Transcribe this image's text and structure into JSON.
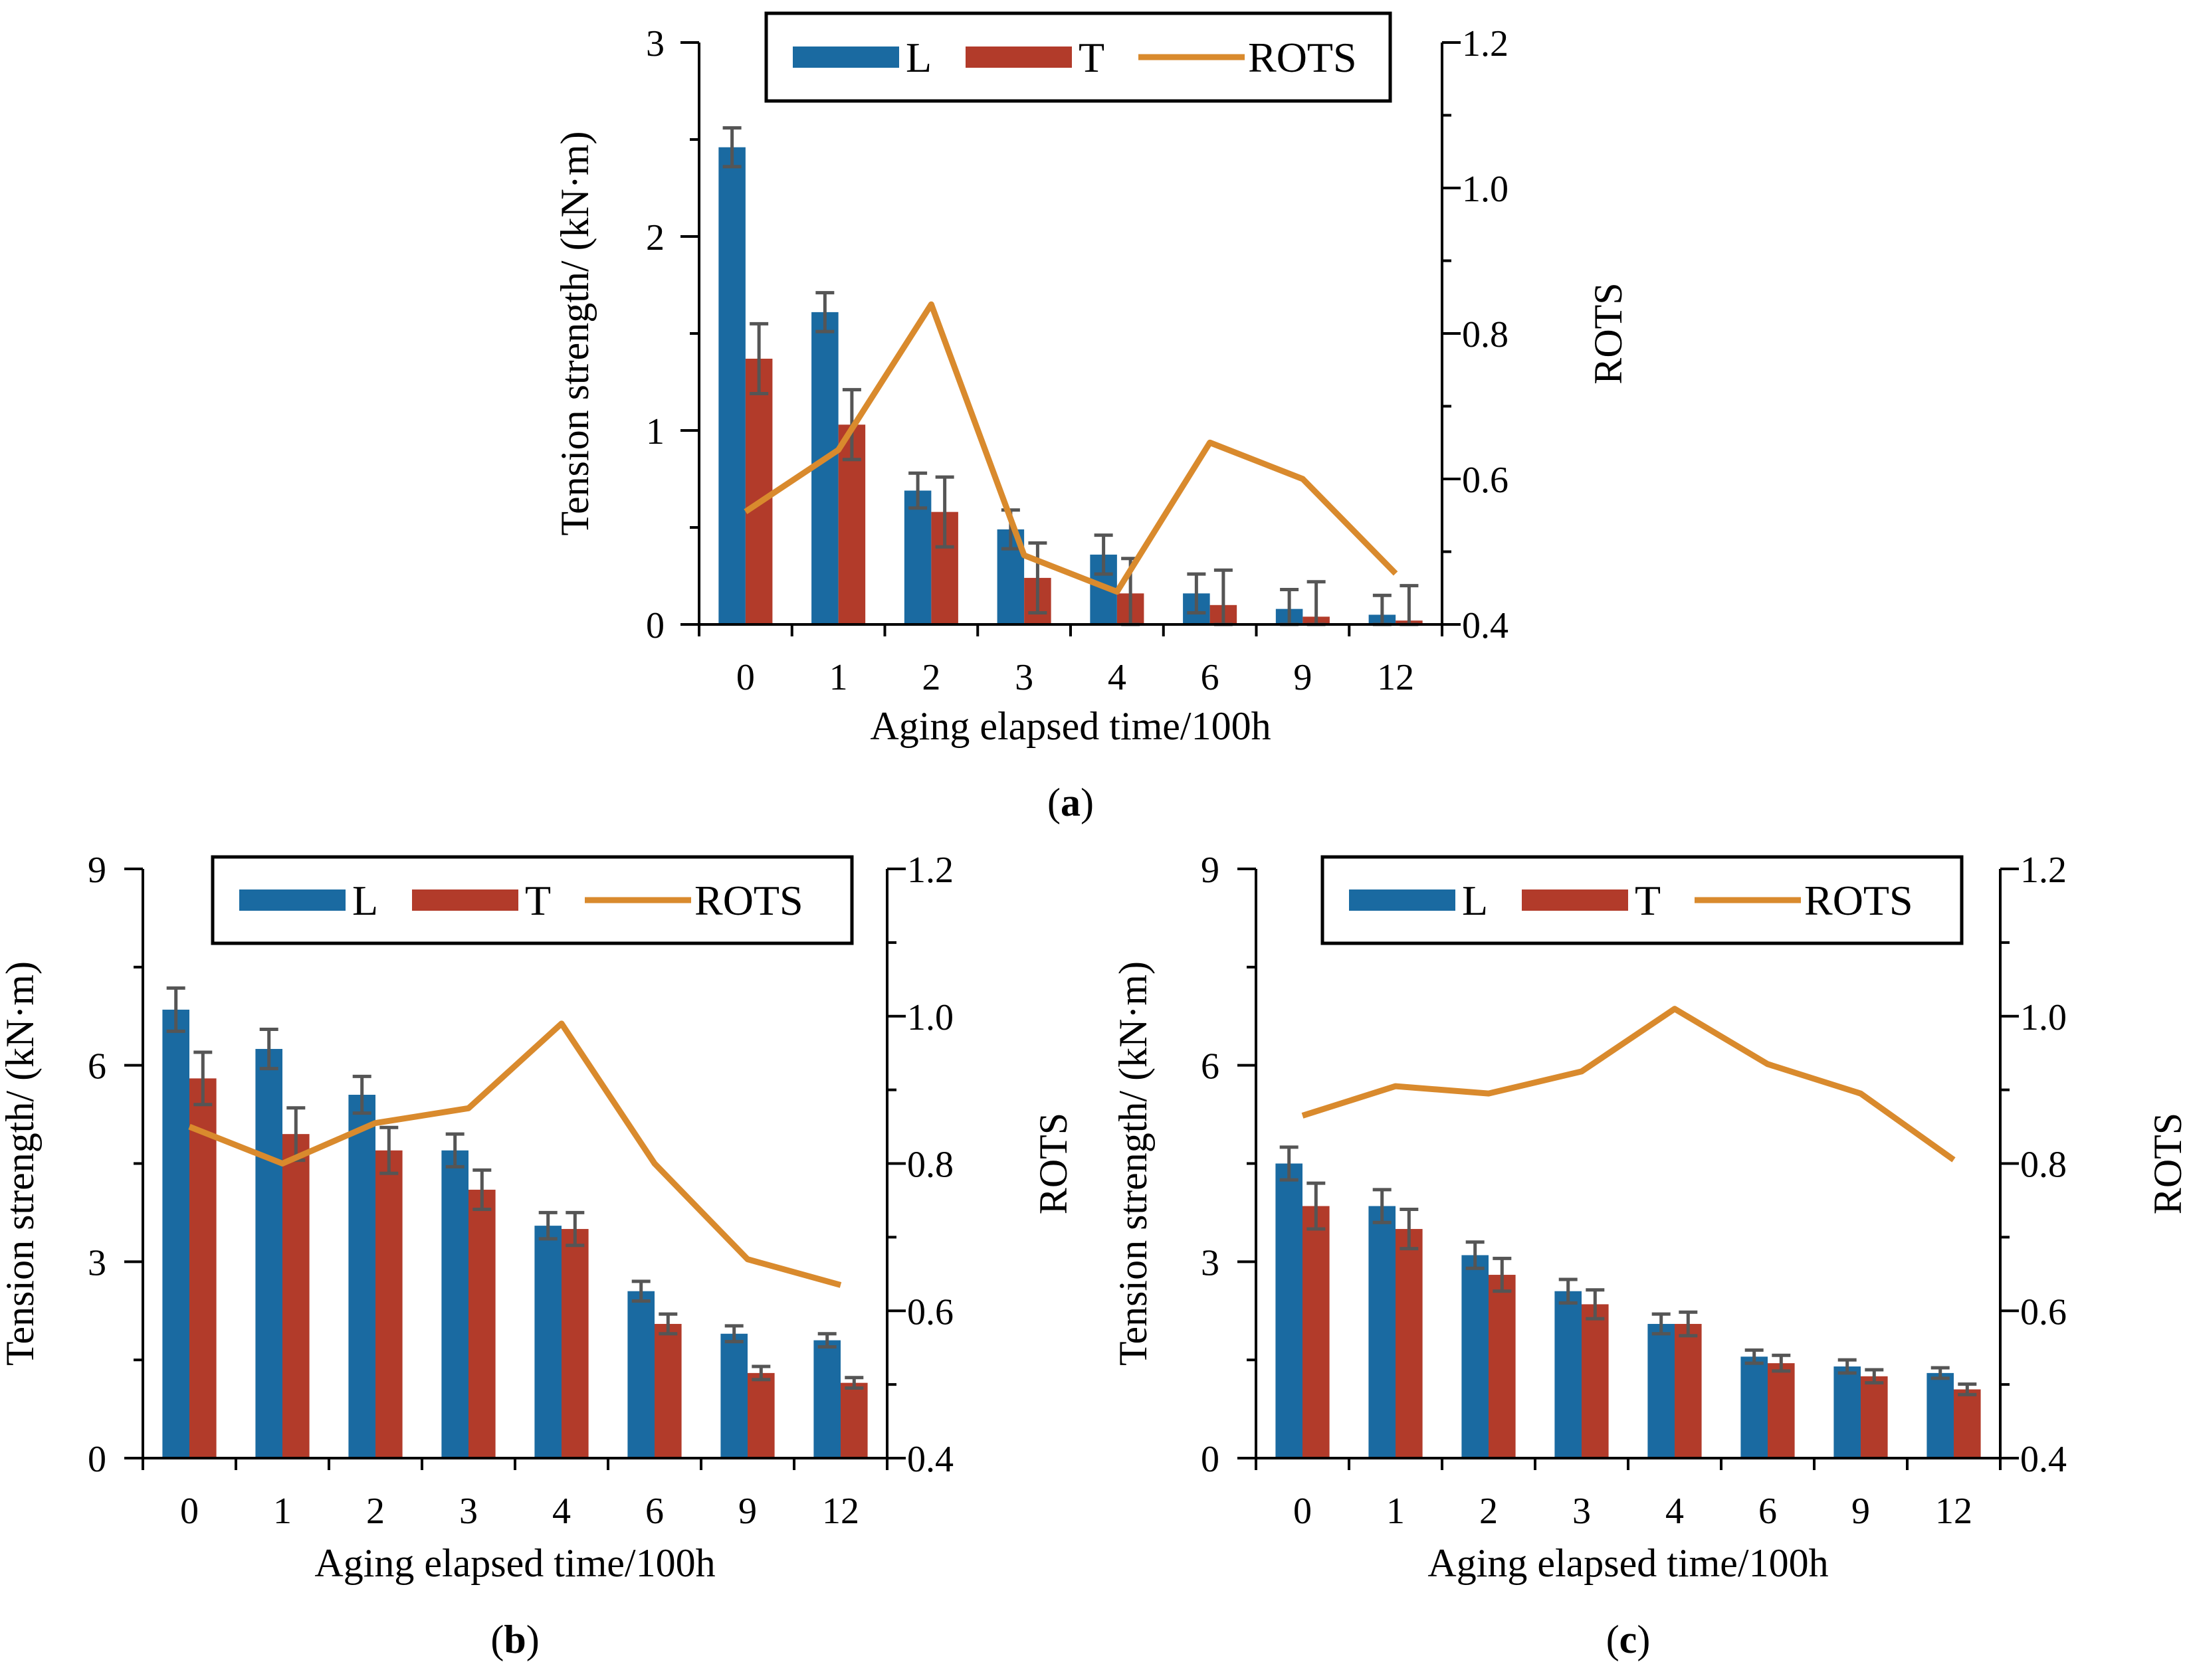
{
  "colors": {
    "L": "#1a6aa1",
    "T": "#b23b2a",
    "ROTS": "#d98a2d",
    "error": "#555555"
  },
  "chart_data": [
    {
      "id": "a",
      "type": "bar",
      "caption_letter": "a",
      "categories": [
        "0",
        "1",
        "2",
        "3",
        "4",
        "6",
        "9",
        "12"
      ],
      "series": [
        {
          "name": "L",
          "values": [
            2.46,
            1.61,
            0.69,
            0.49,
            0.36,
            0.16,
            0.08,
            0.05
          ],
          "errors": [
            0.1,
            0.1,
            0.09,
            0.1,
            0.1,
            0.1,
            0.1,
            0.1
          ]
        },
        {
          "name": "T",
          "values": [
            1.37,
            1.03,
            0.58,
            0.24,
            0.16,
            0.1,
            0.04,
            0.02
          ],
          "errors": [
            0.18,
            0.18,
            0.18,
            0.18,
            0.18,
            0.18,
            0.18,
            0.18
          ]
        }
      ],
      "line": {
        "name": "ROTS",
        "values": [
          0.555,
          0.64,
          0.84,
          0.495,
          0.445,
          0.65,
          0.6,
          0.47
        ]
      },
      "xlabel": "Aging elapsed time/100h",
      "ylabel": "Tension strength/ (kN·m)",
      "y2label": "ROTS",
      "ylim": [
        0,
        3
      ],
      "yticks": [
        "0",
        "1",
        "2",
        "3"
      ],
      "y2lim": [
        0.4,
        1.2
      ],
      "y2ticks": [
        "0.4",
        "0.6",
        "0.8",
        "1.0",
        "1.2"
      ],
      "legend": [
        "L",
        "T",
        "ROTS"
      ]
    },
    {
      "id": "b",
      "type": "bar",
      "caption_letter": "b",
      "categories": [
        "0",
        "1",
        "2",
        "3",
        "4",
        "6",
        "9",
        "12"
      ],
      "series": [
        {
          "name": "L",
          "values": [
            6.85,
            6.25,
            5.55,
            4.7,
            3.55,
            2.55,
            1.9,
            1.8
          ],
          "errors": [
            0.33,
            0.3,
            0.28,
            0.25,
            0.2,
            0.15,
            0.12,
            0.1
          ]
        },
        {
          "name": "T",
          "values": [
            5.8,
            4.95,
            4.7,
            4.1,
            3.5,
            2.05,
            1.3,
            1.15
          ],
          "errors": [
            0.4,
            0.4,
            0.35,
            0.3,
            0.25,
            0.15,
            0.1,
            0.08
          ]
        }
      ],
      "line": {
        "name": "ROTS",
        "values": [
          0.85,
          0.8,
          0.855,
          0.875,
          0.99,
          0.8,
          0.67,
          0.635
        ]
      },
      "xlabel": "Aging elapsed time/100h",
      "ylabel": "Tension strength/ (kN·m)",
      "y2label": "ROTS",
      "ylim": [
        0,
        9
      ],
      "yticks": [
        "0",
        "3",
        "6",
        "9"
      ],
      "y2lim": [
        0.4,
        1.2
      ],
      "y2ticks": [
        "0.4",
        "0.6",
        "0.8",
        "1.0",
        "1.2"
      ],
      "legend": [
        "L",
        "T",
        "ROTS"
      ]
    },
    {
      "id": "c",
      "type": "bar",
      "caption_letter": "c",
      "categories": [
        "0",
        "1",
        "2",
        "3",
        "4",
        "6",
        "9",
        "12"
      ],
      "series": [
        {
          "name": "L",
          "values": [
            4.5,
            3.85,
            3.1,
            2.55,
            2.05,
            1.55,
            1.4,
            1.3
          ],
          "errors": [
            0.25,
            0.25,
            0.2,
            0.18,
            0.15,
            0.1,
            0.1,
            0.08
          ]
        },
        {
          "name": "T",
          "values": [
            3.85,
            3.5,
            2.8,
            2.35,
            2.05,
            1.45,
            1.25,
            1.05
          ],
          "errors": [
            0.35,
            0.3,
            0.25,
            0.22,
            0.18,
            0.12,
            0.1,
            0.08
          ]
        }
      ],
      "line": {
        "name": "ROTS",
        "values": [
          0.865,
          0.905,
          0.895,
          0.925,
          1.01,
          0.935,
          0.895,
          0.805
        ]
      },
      "xlabel": "Aging elapsed time/100h",
      "ylabel": "Tension strength/ (kN·m)",
      "y2label": "ROTS",
      "ylim": [
        0,
        9
      ],
      "yticks": [
        "0",
        "3",
        "6",
        "9"
      ],
      "y2lim": [
        0.4,
        1.2
      ],
      "y2ticks": [
        "0.4",
        "0.6",
        "0.8",
        "1.0",
        "1.2"
      ],
      "legend": [
        "L",
        "T",
        "ROTS"
      ]
    }
  ]
}
